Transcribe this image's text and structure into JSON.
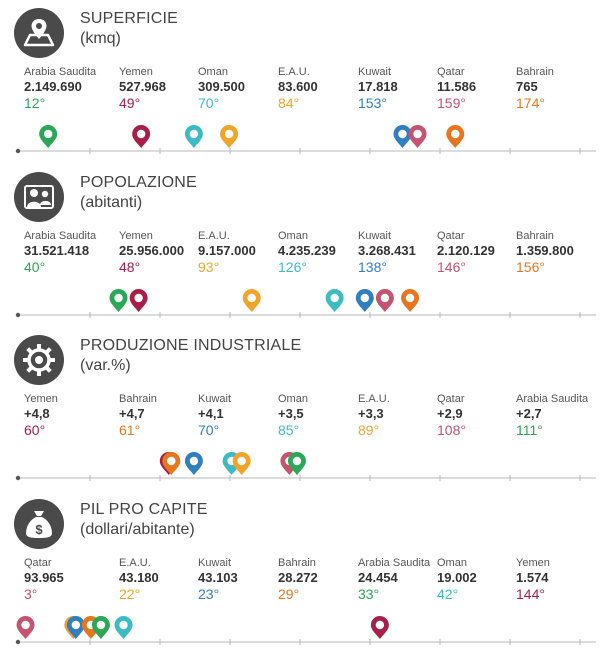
{
  "sections": [
    {
      "title": "SUPERFICIE",
      "subtitle": "(kmq)",
      "icon": "map-pin-icon",
      "countries": [
        {
          "name": "Arabia Saudita",
          "value": "2.149.690",
          "rank": "12°",
          "rank_num": 12,
          "color": "#2aa855"
        },
        {
          "name": "Yemen",
          "value": "527.968",
          "rank": "49°",
          "rank_num": 49,
          "color": "#a81e4a"
        },
        {
          "name": "Oman",
          "value": "309.500",
          "rank": "70°",
          "rank_num": 70,
          "color": "#3bbcc4"
        },
        {
          "name": "E.A.U.",
          "value": "83.600",
          "rank": "84°",
          "rank_num": 84,
          "color": "#f2a428"
        },
        {
          "name": "Kuwait",
          "value": "17.818",
          "rank": "153°",
          "rank_num": 153,
          "color": "#2f7fc1"
        },
        {
          "name": "Qatar",
          "value": "11.586",
          "rank": "159°",
          "rank_num": 159,
          "color": "#c6536f"
        },
        {
          "name": "Bahrain",
          "value": "765",
          "rank": "174°",
          "rank_num": 174,
          "color": "#e8761f"
        }
      ]
    },
    {
      "title": "POPOLAZIONE",
      "subtitle": "(abitanti)",
      "icon": "people-icon",
      "countries": [
        {
          "name": "Arabia Saudita",
          "value": "31.521.418",
          "rank": "40°",
          "rank_num": 40,
          "color": "#2aa855"
        },
        {
          "name": "Yemen",
          "value": "25.956.000",
          "rank": "48°",
          "rank_num": 48,
          "color": "#a81e4a"
        },
        {
          "name": "E.A.U.",
          "value": "9.157.000",
          "rank": "93°",
          "rank_num": 93,
          "color": "#f2a428"
        },
        {
          "name": "Oman",
          "value": "4.235.239",
          "rank": "126°",
          "rank_num": 126,
          "color": "#3bbcc4"
        },
        {
          "name": "Kuwait",
          "value": "3.268.431",
          "rank": "138°",
          "rank_num": 138,
          "color": "#2f7fc1"
        },
        {
          "name": "Qatar",
          "value": "2.120.129",
          "rank": "146°",
          "rank_num": 146,
          "color": "#c6536f"
        },
        {
          "name": "Bahrain",
          "value": "1.359.800",
          "rank": "156°",
          "rank_num": 156,
          "color": "#e8761f"
        }
      ]
    },
    {
      "title": "PRODUZIONE INDUSTRIALE",
      "subtitle": "(var.%)",
      "icon": "gear-icon",
      "countries": [
        {
          "name": "Yemen",
          "value": "+4,8",
          "rank": "60°",
          "rank_num": 60,
          "color": "#a81e4a"
        },
        {
          "name": "Bahrain",
          "value": "+4,7",
          "rank": "61°",
          "rank_num": 61,
          "color": "#e8761f"
        },
        {
          "name": "Kuwait",
          "value": "+4,1",
          "rank": "70°",
          "rank_num": 70,
          "color": "#2f7fc1"
        },
        {
          "name": "Oman",
          "value": "+3,5",
          "rank": "85°",
          "rank_num": 85,
          "color": "#3bbcc4"
        },
        {
          "name": "E.A.U.",
          "value": "+3,3",
          "rank": "89°",
          "rank_num": 89,
          "color": "#f2a428"
        },
        {
          "name": "Qatar",
          "value": "+2,9",
          "rank": "108°",
          "rank_num": 108,
          "color": "#c6536f"
        },
        {
          "name": "Arabia Saudita",
          "value": "+2,7",
          "rank": "111°",
          "rank_num": 111,
          "color": "#2aa855"
        }
      ]
    },
    {
      "title": "PIL PRO CAPITE",
      "subtitle": "(dollari/abitante)",
      "icon": "money-bag-icon",
      "countries": [
        {
          "name": "Qatar",
          "value": "93.965",
          "rank": "3°",
          "rank_num": 3,
          "color": "#c6536f"
        },
        {
          "name": "E.A.U.",
          "value": "43.180",
          "rank": "22°",
          "rank_num": 22,
          "color": "#f2a428"
        },
        {
          "name": "Kuwait",
          "value": "43.103",
          "rank": "23°",
          "rank_num": 23,
          "color": "#2f7fc1"
        },
        {
          "name": "Bahrain",
          "value": "28.272",
          "rank": "29°",
          "rank_num": 29,
          "color": "#e8761f"
        },
        {
          "name": "Arabia Saudita",
          "value": "24.454",
          "rank": "33°",
          "rank_num": 33,
          "color": "#2aa855"
        },
        {
          "name": "Oman",
          "value": "19.002",
          "rank": "42°",
          "rank_num": 42,
          "color": "#3bbcc4"
        },
        {
          "name": "Yemen",
          "value": "1.574",
          "rank": "144°",
          "rank_num": 144,
          "color": "#a81e4a"
        }
      ]
    }
  ],
  "chart_data": {
    "type": "scatter",
    "axis_max_rank": 230,
    "series": [
      {
        "name": "SUPERFICIE",
        "categories": [
          "Arabia Saudita",
          "Yemen",
          "Oman",
          "E.A.U.",
          "Kuwait",
          "Qatar",
          "Bahrain"
        ],
        "values": [
          12,
          49,
          70,
          84,
          153,
          159,
          174
        ]
      },
      {
        "name": "POPOLAZIONE",
        "categories": [
          "Arabia Saudita",
          "Yemen",
          "E.A.U.",
          "Oman",
          "Kuwait",
          "Qatar",
          "Bahrain"
        ],
        "values": [
          40,
          48,
          93,
          126,
          138,
          146,
          156
        ]
      },
      {
        "name": "PRODUZIONE INDUSTRIALE",
        "categories": [
          "Yemen",
          "Bahrain",
          "Kuwait",
          "Oman",
          "E.A.U.",
          "Qatar",
          "Arabia Saudita"
        ],
        "values": [
          60,
          61,
          70,
          85,
          89,
          108,
          111
        ]
      },
      {
        "name": "PIL PRO CAPITE",
        "categories": [
          "Qatar",
          "E.A.U.",
          "Kuwait",
          "Bahrain",
          "Arabia Saudita",
          "Oman",
          "Yemen"
        ],
        "values": [
          3,
          22,
          23,
          29,
          33,
          42,
          144
        ]
      }
    ]
  }
}
